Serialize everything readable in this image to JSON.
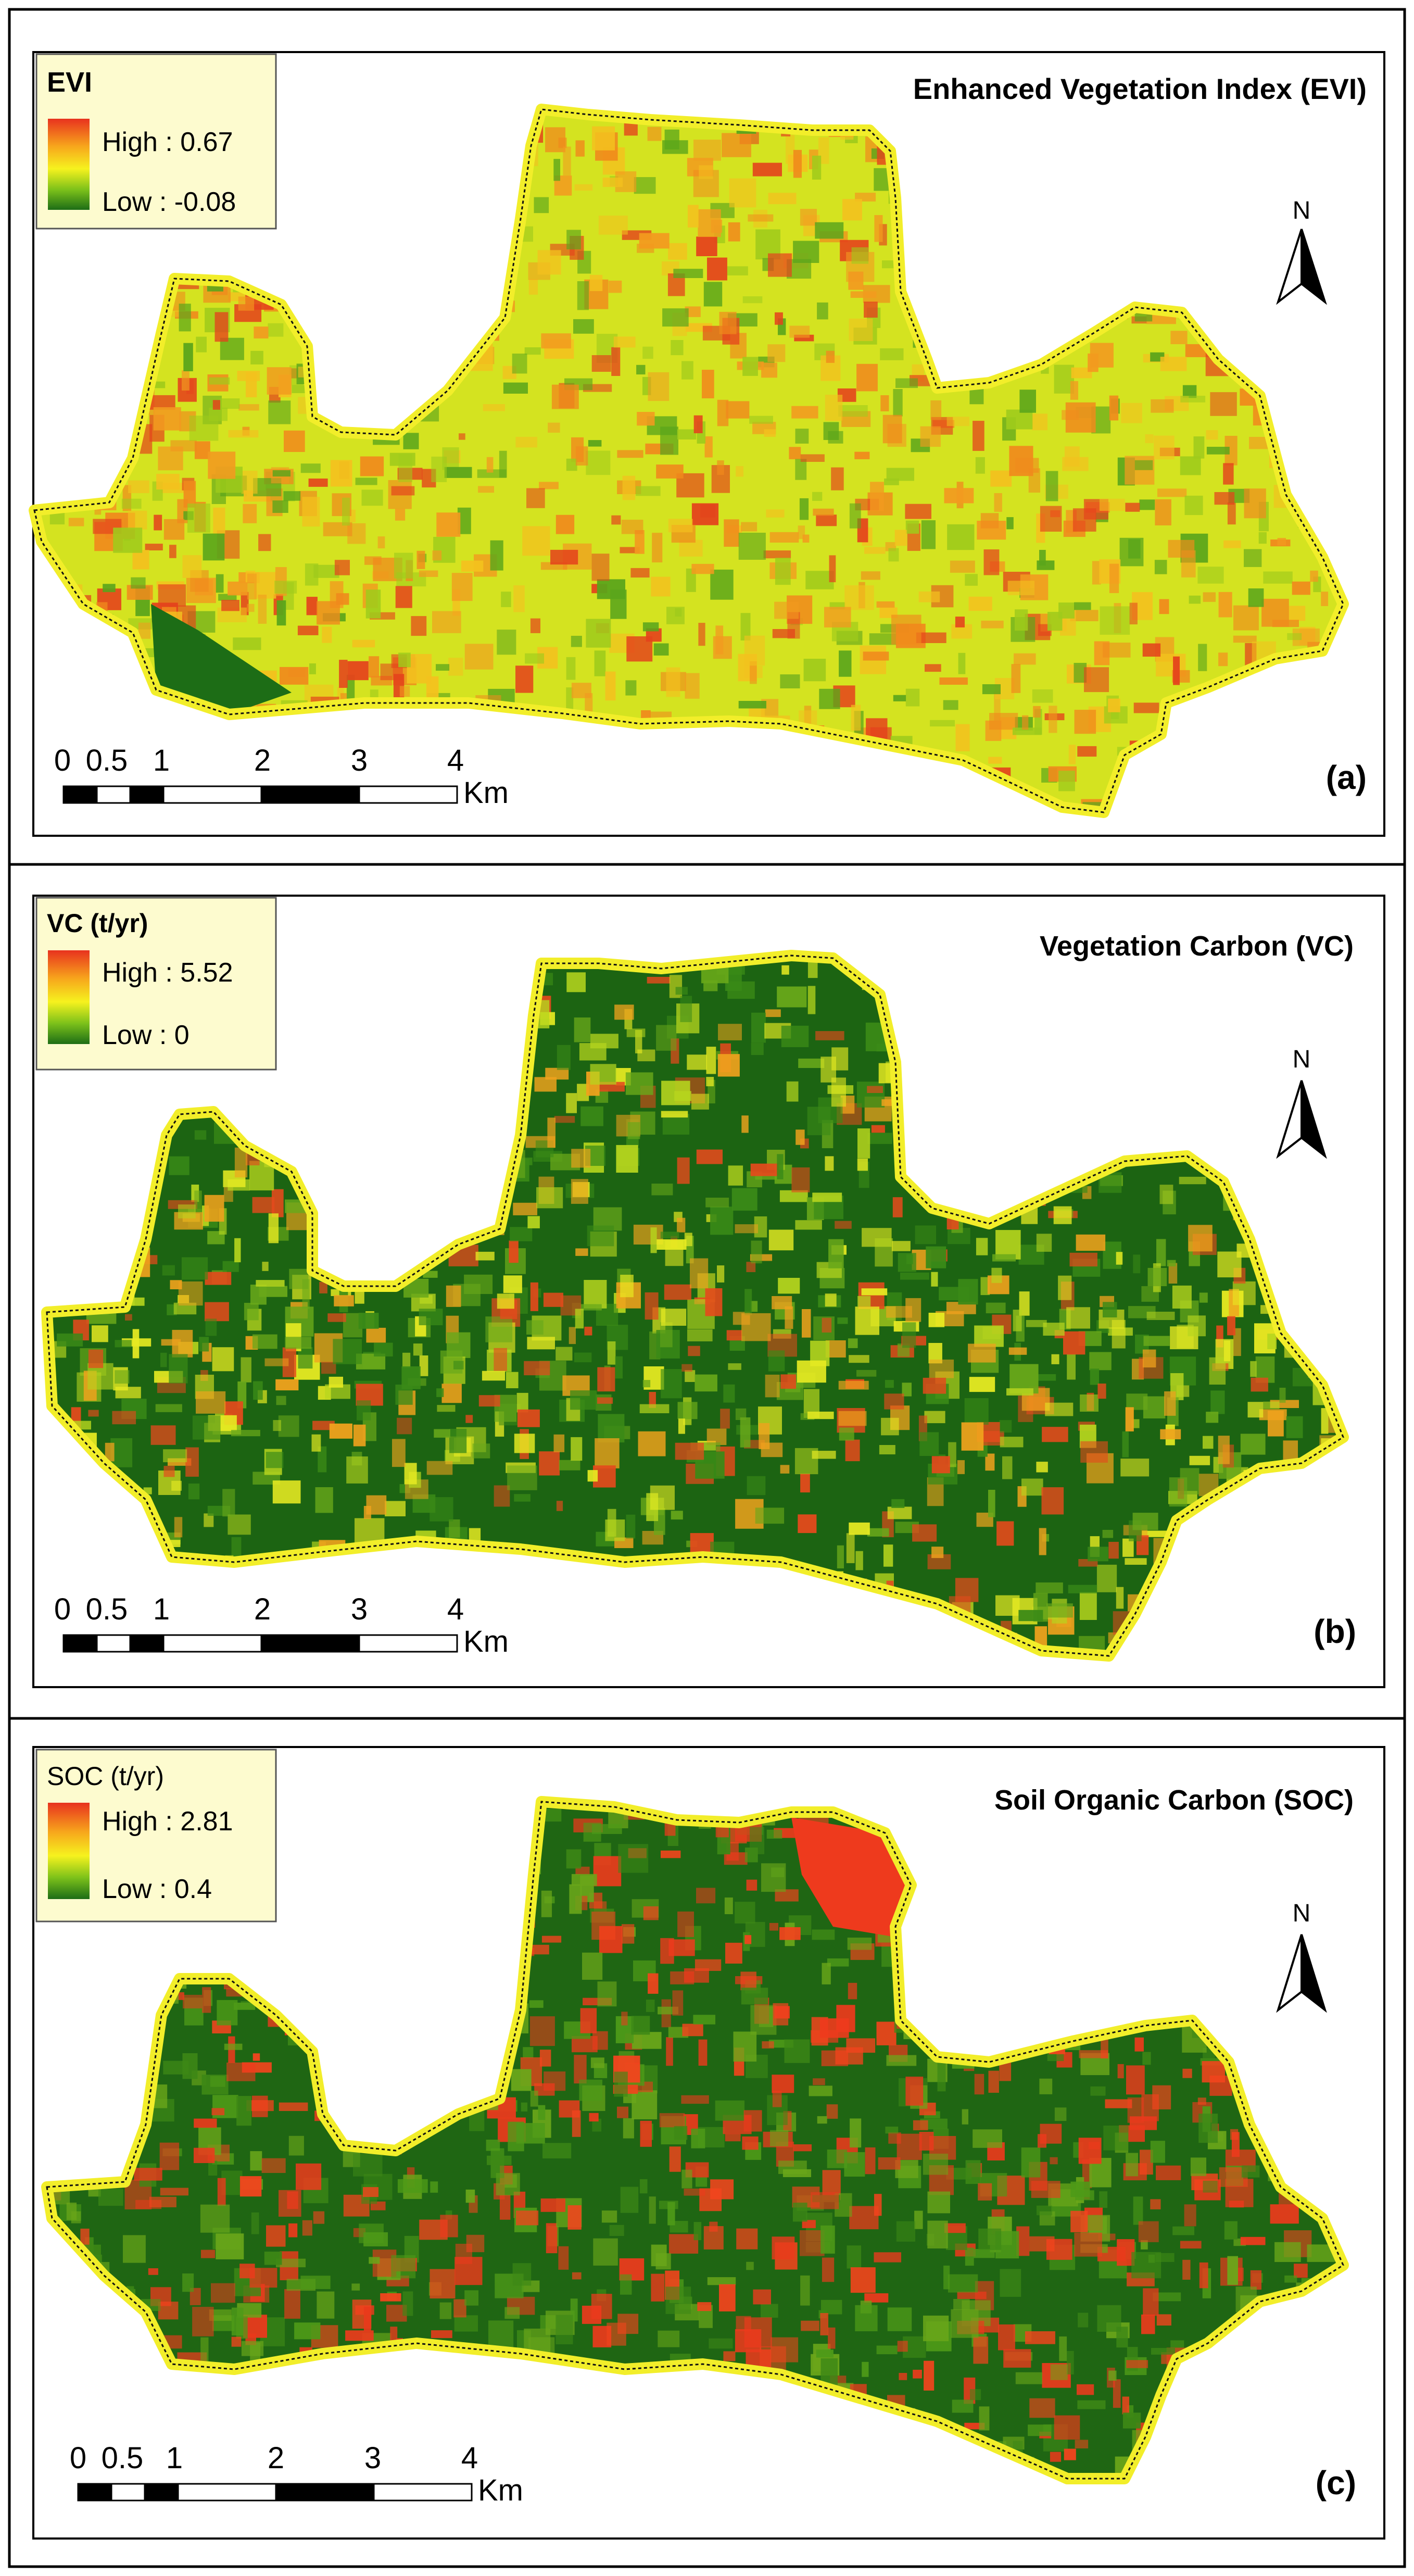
{
  "figure": {
    "panels": [
      {
        "panel_label": "(a)",
        "title": "Enhanced Vegetation Index (EVI)",
        "legend": {
          "title": "EVI",
          "high_label": "High : 0.67",
          "low_label": "Low : -0.08",
          "ramp_colors": [
            "#e8321e",
            "#f7a51c",
            "#f6f21e",
            "#7cc11a",
            "#1d6d16"
          ]
        },
        "map_style": {
          "base_color": "#d4e320",
          "boundary_color": "#f2ee2a",
          "outline_color": "#111111",
          "patch_colors": [
            "#f29a1f",
            "#e4431c",
            "#f3c11e",
            "#9fcb1b",
            "#5aa51b",
            "#f08a1c"
          ]
        },
        "north_arrow": {
          "label": "N",
          "icon": "north-arrow-icon"
        },
        "scale_bar": {
          "tick_labels": [
            "0",
            "0.5",
            "1",
            "2",
            "3",
            "4"
          ],
          "unit": "Km"
        }
      },
      {
        "panel_label": "(b)",
        "title": "Vegetation Carbon (VC)",
        "legend": {
          "title": "VC (t/yr)",
          "high_label": "High : 5.52",
          "low_label": "Low : 0",
          "ramp_colors": [
            "#e8321e",
            "#f7a51c",
            "#f6f21e",
            "#7cc11a",
            "#1d6d16"
          ]
        },
        "map_style": {
          "base_color": "#1c6412",
          "boundary_color": "#f2ee2a",
          "outline_color": "#111111",
          "patch_colors": [
            "#3a8a17",
            "#e8eb22",
            "#b6d51e",
            "#f0a21d",
            "#e44a1c",
            "#69a81a"
          ]
        },
        "north_arrow": {
          "label": "N",
          "icon": "north-arrow-icon"
        },
        "scale_bar": {
          "tick_labels": [
            "0",
            "0.5",
            "1",
            "2",
            "3",
            "4"
          ],
          "unit": "Km"
        }
      },
      {
        "panel_label": "(c)",
        "title": "Soil Organic Carbon (SOC)",
        "legend": {
          "title": "SOC  (t/yr)",
          "high_label": "High : 2.81",
          "low_label": "Low : 0.4",
          "ramp_colors": [
            "#e8321e",
            "#f7a51c",
            "#f6f21e",
            "#7cc11a",
            "#1d6d16"
          ]
        },
        "map_style": {
          "base_color": "#1f6613",
          "boundary_color": "#f2ee2a",
          "outline_color": "#111111",
          "patch_colors": [
            "#ee3a1d",
            "#f2441d",
            "#4e9a18",
            "#3d8816",
            "#e93a1c",
            "#6aa61a"
          ]
        },
        "north_arrow": {
          "label": "N",
          "icon": "north-arrow-icon"
        },
        "scale_bar": {
          "tick_labels": [
            "0",
            "0.5",
            "1",
            "2",
            "3",
            "4"
          ],
          "unit": "Km"
        }
      }
    ]
  }
}
